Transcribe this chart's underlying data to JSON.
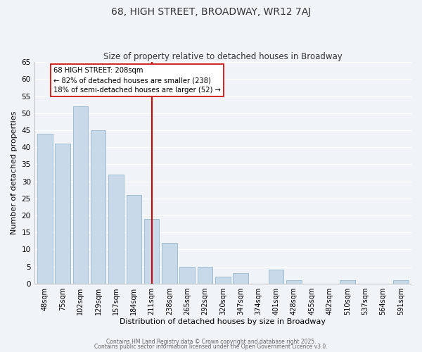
{
  "title": "68, HIGH STREET, BROADWAY, WR12 7AJ",
  "subtitle": "Size of property relative to detached houses in Broadway",
  "xlabel": "Distribution of detached houses by size in Broadway",
  "ylabel": "Number of detached properties",
  "bar_color": "#c8daea",
  "bar_edge_color": "#a0bcd0",
  "background_color": "#f0f4f8",
  "grid_color": "#ffffff",
  "categories": [
    "48sqm",
    "75sqm",
    "102sqm",
    "129sqm",
    "157sqm",
    "184sqm",
    "211sqm",
    "238sqm",
    "265sqm",
    "292sqm",
    "320sqm",
    "347sqm",
    "374sqm",
    "401sqm",
    "428sqm",
    "455sqm",
    "482sqm",
    "510sqm",
    "537sqm",
    "564sqm",
    "591sqm"
  ],
  "values": [
    44,
    41,
    52,
    45,
    32,
    26,
    19,
    12,
    5,
    5,
    2,
    3,
    0,
    4,
    1,
    0,
    0,
    1,
    0,
    0,
    1
  ],
  "ylim": [
    0,
    65
  ],
  "yticks": [
    0,
    5,
    10,
    15,
    20,
    25,
    30,
    35,
    40,
    45,
    50,
    55,
    60,
    65
  ],
  "vline_index": 6,
  "vline_color": "#cc0000",
  "annotation_text": "68 HIGH STREET: 208sqm\n← 82% of detached houses are smaller (238)\n18% of semi-detached houses are larger (52) →",
  "annotation_box_color": "#ffffff",
  "annotation_box_edge": "#cc0000",
  "title_fontsize": 10,
  "subtitle_fontsize": 8.5,
  "footer1": "Contains HM Land Registry data © Crown copyright and database right 2025.",
  "footer2": "Contains public sector information licensed under the Open Government Licence v3.0."
}
